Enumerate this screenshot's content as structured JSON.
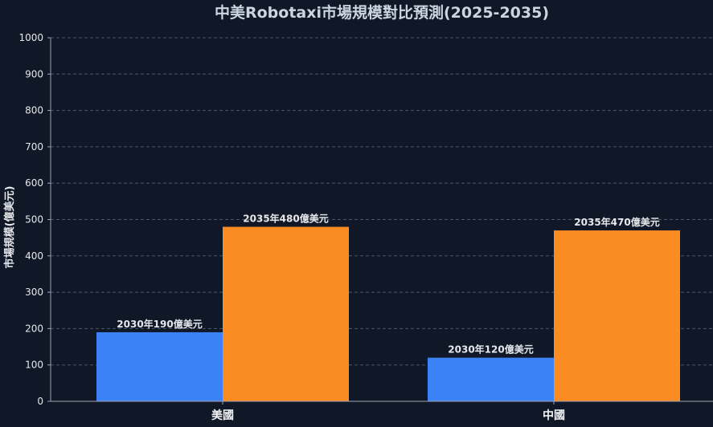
{
  "chart_data": {
    "type": "bar",
    "title": "中美Robotaxi市場規模對比預測(2025-2035)",
    "xlabel": "",
    "ylabel": "市場規模(億美元)",
    "categories": [
      "美國",
      "中國"
    ],
    "series": [
      {
        "values": [
          190,
          120
        ],
        "color": "#3b82f6",
        "labels": [
          "2030年190億美元",
          "2030年120億美元"
        ]
      },
      {
        "values": [
          480,
          470
        ],
        "color": "#fb8c23",
        "labels": [
          "2035年480億美元",
          "2035年470億美元"
        ]
      }
    ],
    "ylim": [
      0,
      1000
    ],
    "yticks": [
      0,
      100,
      200,
      300,
      400,
      500,
      600,
      700,
      800,
      900,
      1000
    ],
    "grid": true,
    "legend": "none"
  }
}
